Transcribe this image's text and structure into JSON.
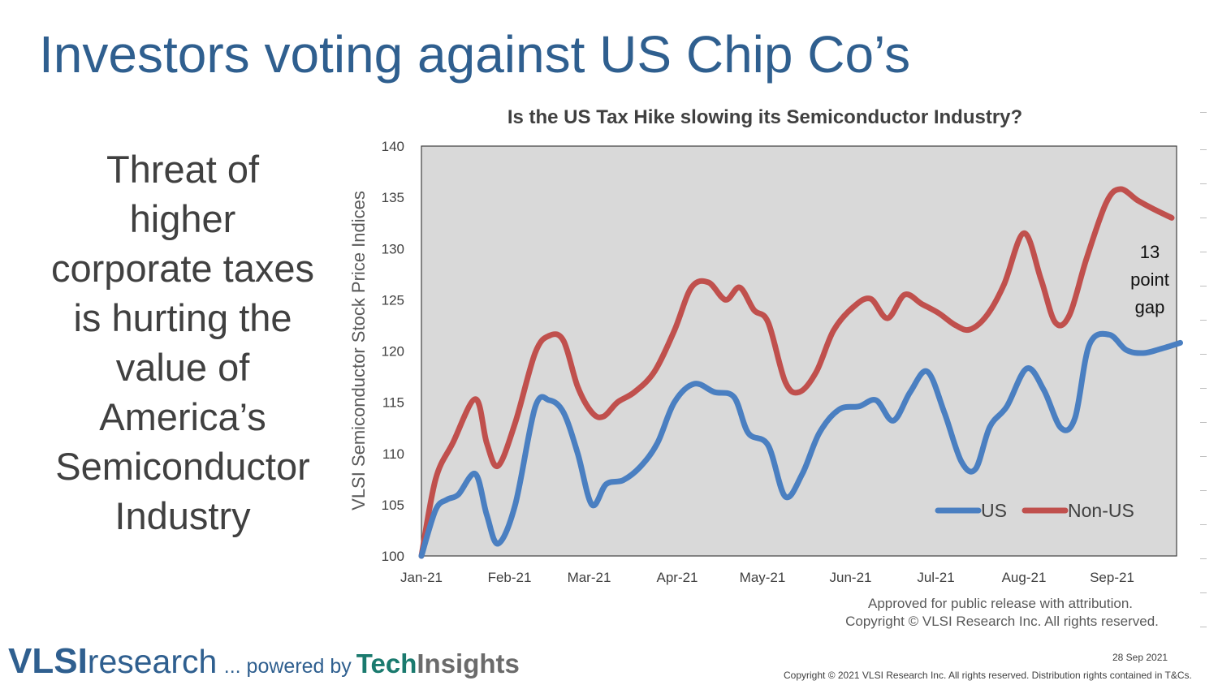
{
  "slide": {
    "title": "Investors voting against US Chip Co’s",
    "side_text_lines": [
      "Threat of",
      "higher",
      "corporate taxes",
      "is hurting the",
      "value of",
      "America’s",
      "Semiconductor",
      "Industry"
    ]
  },
  "chart_data": {
    "type": "line",
    "title": "Is the US Tax Hike slowing its Semiconductor Industry?",
    "xlabel": "",
    "ylabel": "VLSI Semiconductor Stock Price Indices",
    "x_ticks": [
      "Jan-21",
      "Feb-21",
      "Mar-21",
      "Apr-21",
      "May-21",
      "Jun-21",
      "Jul-21",
      "Aug-21",
      "Sep-21"
    ],
    "y_ticks": [
      100,
      105,
      110,
      115,
      120,
      125,
      130,
      135,
      140
    ],
    "ylim": [
      100,
      140
    ],
    "grid": false,
    "legend_position": "bottom-right",
    "plot_background": "#d9d9d9",
    "series": [
      {
        "name": "US",
        "color": "#4a7fc1",
        "points": [
          [
            "2021-01-01",
            100
          ],
          [
            "2021-01-06",
            104.5
          ],
          [
            "2021-01-10",
            105.5
          ],
          [
            "2021-01-14",
            106
          ],
          [
            "2021-01-20",
            108
          ],
          [
            "2021-01-24",
            104
          ],
          [
            "2021-01-28",
            101.2
          ],
          [
            "2021-02-03",
            105
          ],
          [
            "2021-02-10",
            114.5
          ],
          [
            "2021-02-15",
            115.2
          ],
          [
            "2021-02-20",
            114
          ],
          [
            "2021-02-25",
            110
          ],
          [
            "2021-03-02",
            105
          ],
          [
            "2021-03-07",
            107
          ],
          [
            "2021-03-13",
            107.4
          ],
          [
            "2021-03-19",
            108.7
          ],
          [
            "2021-03-25",
            111
          ],
          [
            "2021-03-31",
            115
          ],
          [
            "2021-04-07",
            116.8
          ],
          [
            "2021-04-14",
            116
          ],
          [
            "2021-04-21",
            115.5
          ],
          [
            "2021-04-26",
            112
          ],
          [
            "2021-05-03",
            110.8
          ],
          [
            "2021-05-09",
            105.8
          ],
          [
            "2021-05-15",
            108
          ],
          [
            "2021-05-21",
            112
          ],
          [
            "2021-05-28",
            114.3
          ],
          [
            "2021-06-04",
            114.6
          ],
          [
            "2021-06-10",
            115.2
          ],
          [
            "2021-06-16",
            113.2
          ],
          [
            "2021-06-22",
            116
          ],
          [
            "2021-06-28",
            118
          ],
          [
            "2021-07-04",
            114
          ],
          [
            "2021-07-10",
            109.2
          ],
          [
            "2021-07-15",
            108.5
          ],
          [
            "2021-07-20",
            112.6
          ],
          [
            "2021-07-26",
            114.6
          ],
          [
            "2021-08-02",
            118.3
          ],
          [
            "2021-08-08",
            116.2
          ],
          [
            "2021-08-14",
            112.5
          ],
          [
            "2021-08-19",
            113.5
          ],
          [
            "2021-08-24",
            120.6
          ],
          [
            "2021-08-31",
            121.6
          ],
          [
            "2021-09-06",
            120.1
          ],
          [
            "2021-09-12",
            119.8
          ],
          [
            "2021-09-18",
            120.2
          ],
          [
            "2021-09-25",
            120.8
          ]
        ]
      },
      {
        "name": "Non-US",
        "color": "#c0504d",
        "points": [
          [
            "2021-01-01",
            100
          ],
          [
            "2021-01-06",
            107.5
          ],
          [
            "2021-01-12",
            111
          ],
          [
            "2021-01-20",
            115.3
          ],
          [
            "2021-01-24",
            111
          ],
          [
            "2021-01-28",
            108.8
          ],
          [
            "2021-02-03",
            113
          ],
          [
            "2021-02-10",
            119.8
          ],
          [
            "2021-02-15",
            121.5
          ],
          [
            "2021-02-20",
            121
          ],
          [
            "2021-02-25",
            116.5
          ],
          [
            "2021-03-02",
            114
          ],
          [
            "2021-03-06",
            113.6
          ],
          [
            "2021-03-11",
            115
          ],
          [
            "2021-03-17",
            116
          ],
          [
            "2021-03-24",
            118
          ],
          [
            "2021-03-31",
            122
          ],
          [
            "2021-04-06",
            126.2
          ],
          [
            "2021-04-12",
            126.7
          ],
          [
            "2021-04-18",
            125
          ],
          [
            "2021-04-23",
            126.2
          ],
          [
            "2021-04-28",
            124
          ],
          [
            "2021-05-03",
            122.8
          ],
          [
            "2021-05-09",
            117
          ],
          [
            "2021-05-14",
            116
          ],
          [
            "2021-05-20",
            118
          ],
          [
            "2021-05-26",
            122
          ],
          [
            "2021-06-02",
            124.3
          ],
          [
            "2021-06-08",
            125.1
          ],
          [
            "2021-06-14",
            123.2
          ],
          [
            "2021-06-20",
            125.5
          ],
          [
            "2021-06-26",
            124.6
          ],
          [
            "2021-07-02",
            123.7
          ],
          [
            "2021-07-08",
            122.5
          ],
          [
            "2021-07-13",
            122.1
          ],
          [
            "2021-07-19",
            123.5
          ],
          [
            "2021-07-25",
            126.5
          ],
          [
            "2021-08-01",
            131.5
          ],
          [
            "2021-08-07",
            127
          ],
          [
            "2021-08-12",
            122.8
          ],
          [
            "2021-08-17",
            123.5
          ],
          [
            "2021-08-23",
            129
          ],
          [
            "2021-08-30",
            134.5
          ],
          [
            "2021-09-04",
            135.8
          ],
          [
            "2021-09-10",
            134.7
          ],
          [
            "2021-09-16",
            133.8
          ],
          [
            "2021-09-22",
            133
          ]
        ]
      }
    ],
    "annotations": [
      "13",
      "point",
      "gap"
    ],
    "attribution": [
      "Approved for public release with attribution.",
      "Copyright © VLSI Research Inc.  All rights reserved."
    ]
  },
  "footer": {
    "logo_vlsi": "VLSI",
    "logo_research": "research",
    "logo_powered": "... powered by",
    "logo_tech": "Tech",
    "logo_insights": "Insights",
    "date": "28 Sep 2021",
    "copyright": "Copyright © 2021 VLSI Research Inc. All rights reserved. Distribution rights contained in T&Cs."
  }
}
